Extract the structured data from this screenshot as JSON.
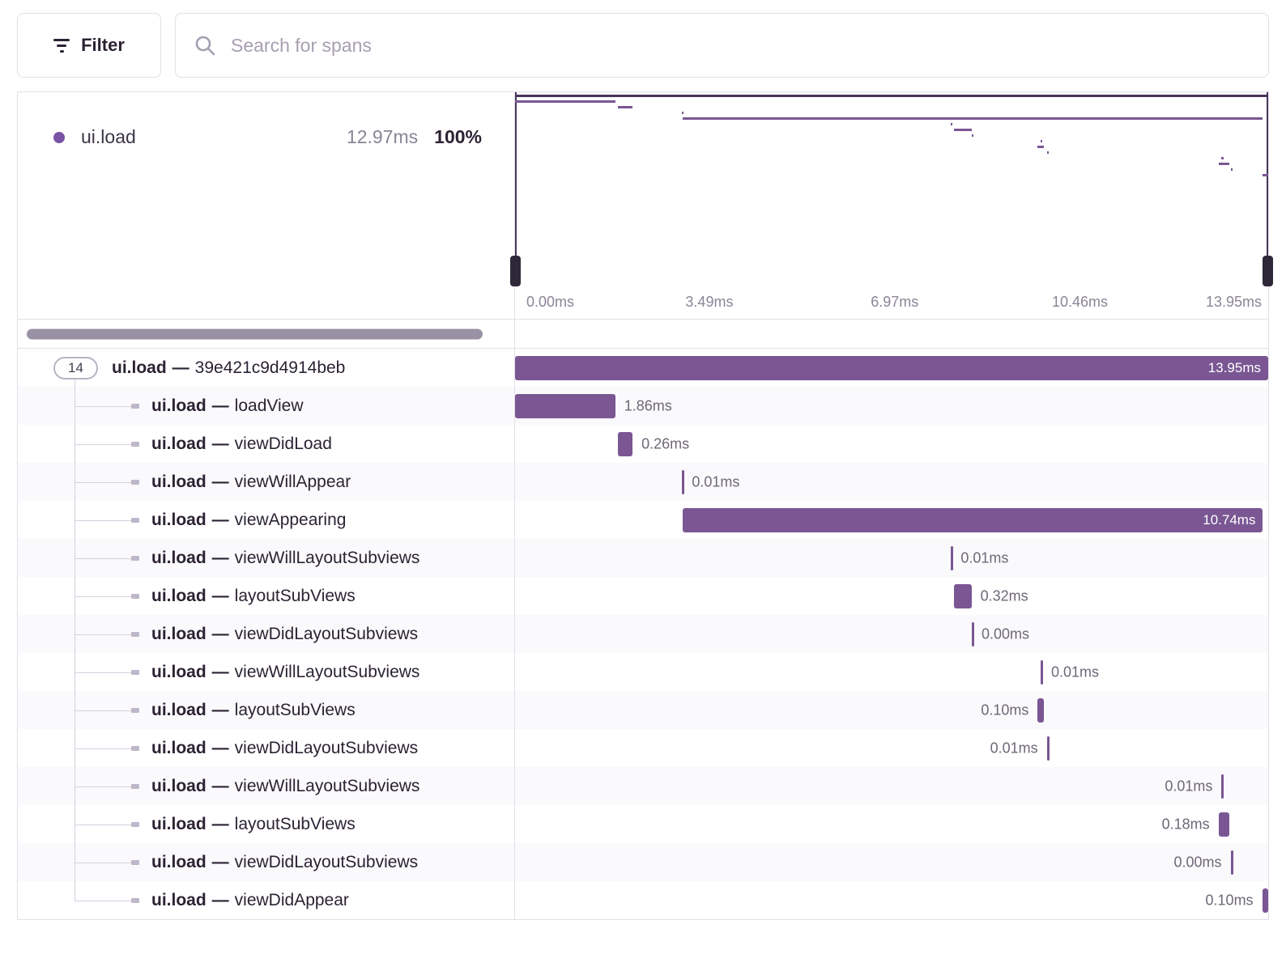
{
  "toolbar": {
    "filter_label": "Filter",
    "search_placeholder": "Search for spans"
  },
  "summary": {
    "op_label": "ui.load",
    "duration": "12.97ms",
    "percent": "100%"
  },
  "minimap": {
    "axis_ticks": [
      "0.00ms",
      "3.49ms",
      "6.97ms",
      "10.46ms",
      "13.95ms"
    ]
  },
  "colors": {
    "span_bar": "#7a5693",
    "minimap_root_span": "#473457",
    "viewport_handle": "#2f2839",
    "op_dot": "#7a52a5"
  },
  "waterfall": {
    "separator": "—",
    "root_badge": "14",
    "rows": [
      {
        "op": "ui.load",
        "desc": "39e421c9d4914beb",
        "duration": "13.95ms",
        "start": 0,
        "width": 100,
        "label": "inside"
      },
      {
        "op": "ui.load",
        "desc": "loadView",
        "duration": "1.86ms",
        "start": 0,
        "width": 13.3,
        "label": "after"
      },
      {
        "op": "ui.load",
        "desc": "viewDidLoad",
        "duration": "0.26ms",
        "start": 13.7,
        "width": 1.9,
        "label": "after"
      },
      {
        "op": "ui.load",
        "desc": "viewWillAppear",
        "duration": "0.01ms",
        "start": 22.1,
        "width": 0.2,
        "label": "after"
      },
      {
        "op": "ui.load",
        "desc": "viewAppearing",
        "duration": "10.74ms",
        "start": 22.3,
        "width": 77.0,
        "label": "inside"
      },
      {
        "op": "ui.load",
        "desc": "viewWillLayoutSubviews",
        "duration": "0.01ms",
        "start": 57.8,
        "width": 0.2,
        "label": "after"
      },
      {
        "op": "ui.load",
        "desc": "layoutSubViews",
        "duration": "0.32ms",
        "start": 58.3,
        "width": 2.3,
        "label": "after"
      },
      {
        "op": "ui.load",
        "desc": "viewDidLayoutSubviews",
        "duration": "0.00ms",
        "start": 60.6,
        "width": 0.15,
        "label": "after"
      },
      {
        "op": "ui.load",
        "desc": "viewWillLayoutSubviews",
        "duration": "0.01ms",
        "start": 69.8,
        "width": 0.2,
        "label": "after"
      },
      {
        "op": "ui.load",
        "desc": "layoutSubViews",
        "duration": "0.10ms",
        "start": 69.4,
        "width": 0.8,
        "label": "before"
      },
      {
        "op": "ui.load",
        "desc": "viewDidLayoutSubviews",
        "duration": "0.01ms",
        "start": 70.6,
        "width": 0.15,
        "label": "before"
      },
      {
        "op": "ui.load",
        "desc": "viewWillLayoutSubviews",
        "duration": "0.01ms",
        "start": 93.8,
        "width": 0.2,
        "label": "before"
      },
      {
        "op": "ui.load",
        "desc": "layoutSubViews",
        "duration": "0.18ms",
        "start": 93.4,
        "width": 1.4,
        "label": "before"
      },
      {
        "op": "ui.load",
        "desc": "viewDidLayoutSubviews",
        "duration": "0.00ms",
        "start": 95.0,
        "width": 0.15,
        "label": "before"
      },
      {
        "op": "ui.load",
        "desc": "viewDidAppear",
        "duration": "0.10ms",
        "start": 99.2,
        "width": 0.8,
        "label": "before"
      }
    ]
  }
}
